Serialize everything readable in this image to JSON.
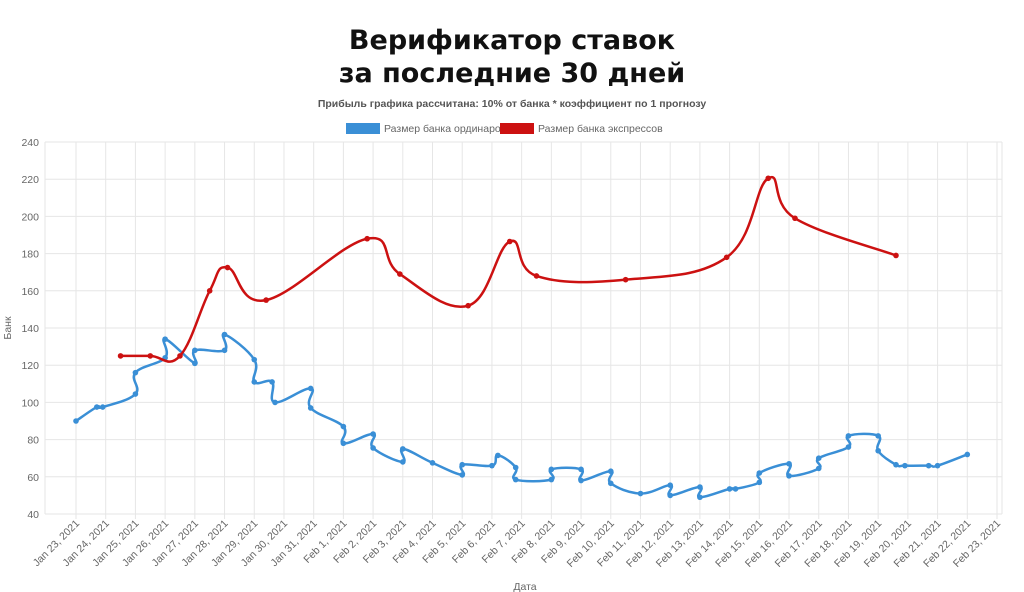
{
  "title_line1": "Верификатор ставок",
  "title_line2": "за последние 30 дней",
  "subtitle": "Прибыль графика рассчитана: 10% от банка * коэффициент по 1 прогнозу",
  "colors": {
    "ordinary": "#3a8fd6",
    "express": "#cc1111",
    "grid": "#e6e6e6"
  },
  "chart_data": {
    "type": "line",
    "title": "Верификатор ставок за последние 30 дней",
    "subtitle": "Прибыль графика рассчитана: 10% от банка * коэффициент по 1 прогнозу",
    "xlabel": "Дата",
    "ylabel": "Банк",
    "ylim": [
      40,
      240
    ],
    "yticks": [
      40,
      60,
      80,
      100,
      120,
      140,
      160,
      180,
      200,
      220,
      240
    ],
    "categories": [
      "Jan 23, 2021",
      "Jan 24, 2021",
      "Jan 25, 2021",
      "Jan 26, 2021",
      "Jan 27, 2021",
      "Jan 28, 2021",
      "Jan 29, 2021",
      "Jan 30, 2021",
      "Jan 31, 2021",
      "Feb 1, 2021",
      "Feb 2, 2021",
      "Feb 3, 2021",
      "Feb 4, 2021",
      "Feb 5, 2021",
      "Feb 6, 2021",
      "Feb 7, 2021",
      "Feb 8, 2021",
      "Feb 9, 2021",
      "Feb 10, 2021",
      "Feb 11, 2021",
      "Feb 12, 2021",
      "Feb 13, 2021",
      "Feb 14, 2021",
      "Feb 15, 2021",
      "Feb 16, 2021",
      "Feb 17, 2021",
      "Feb 18, 2021",
      "Feb 19, 2021",
      "Feb 20, 2021",
      "Feb 21, 2021",
      "Feb 22, 2021",
      "Feb 23, 2021"
    ],
    "grid": true,
    "legend_position": "top",
    "series": [
      {
        "name": "Размер банка ординаров",
        "color": "#3a8fd6",
        "points": [
          [
            0,
            90
          ],
          [
            0.7,
            97.5
          ],
          [
            0.9,
            97.5
          ],
          [
            2.0,
            104.5
          ],
          [
            2.0,
            116
          ],
          [
            3.0,
            124
          ],
          [
            3.0,
            134
          ],
          [
            4.0,
            121
          ],
          [
            4.0,
            128
          ],
          [
            5.0,
            128
          ],
          [
            5.0,
            136.5
          ],
          [
            6.0,
            123
          ],
          [
            6.0,
            111
          ],
          [
            6.6,
            111
          ],
          [
            6.7,
            100
          ],
          [
            7.9,
            107.5
          ],
          [
            7.9,
            97
          ],
          [
            9.0,
            87
          ],
          [
            9.0,
            78
          ],
          [
            10.0,
            83
          ],
          [
            10.0,
            75.5
          ],
          [
            11.0,
            68
          ],
          [
            11.0,
            75
          ],
          [
            12.0,
            67.5
          ],
          [
            13.0,
            61
          ],
          [
            13.0,
            66.5
          ],
          [
            14.0,
            66
          ],
          [
            14.2,
            71.5
          ],
          [
            14.8,
            65
          ],
          [
            14.8,
            58.5
          ],
          [
            16.0,
            58.5
          ],
          [
            16.0,
            64
          ],
          [
            17.0,
            64
          ],
          [
            17.0,
            58
          ],
          [
            18.0,
            63
          ],
          [
            18.0,
            56.5
          ],
          [
            19.0,
            51
          ],
          [
            20.0,
            55.5
          ],
          [
            20.0,
            50
          ],
          [
            21.0,
            54.5
          ],
          [
            21.0,
            49
          ],
          [
            22.0,
            53.5
          ],
          [
            22.2,
            53.5
          ],
          [
            23.0,
            57
          ],
          [
            23.0,
            62
          ],
          [
            24.0,
            67
          ],
          [
            24.0,
            60.5
          ],
          [
            25.0,
            64.5
          ],
          [
            25.0,
            70
          ],
          [
            26.0,
            76
          ],
          [
            26.0,
            82
          ],
          [
            27.0,
            82
          ],
          [
            27.0,
            74
          ],
          [
            27.6,
            66.5
          ],
          [
            27.9,
            66
          ],
          [
            28.7,
            66
          ],
          [
            29.0,
            66
          ],
          [
            30.0,
            72
          ]
        ]
      },
      {
        "name": "Размер банка экспрессов",
        "color": "#cc1111",
        "points": [
          [
            1.5,
            125
          ],
          [
            2.5,
            125
          ],
          [
            3.5,
            125
          ],
          [
            4.5,
            160
          ],
          [
            5.1,
            172.5
          ],
          [
            6.4,
            155
          ],
          [
            9.8,
            188
          ],
          [
            10.9,
            169
          ],
          [
            13.2,
            152
          ],
          [
            14.6,
            186.5
          ],
          [
            15.5,
            168
          ],
          [
            18.5,
            166
          ],
          [
            21.9,
            178
          ],
          [
            23.3,
            220.5
          ],
          [
            24.2,
            199
          ],
          [
            27.6,
            179
          ]
        ]
      }
    ]
  }
}
